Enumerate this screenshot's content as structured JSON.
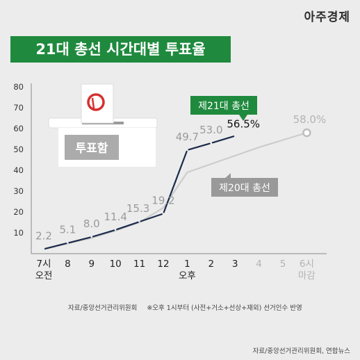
{
  "brand": "아주경제",
  "title": "21대 총선 시간대별 투표율",
  "ballot_box_label": "투표함",
  "footnote_source": "자료/중앙선거관리위원회",
  "footnote_note": "※오후 1시부터 (사전+거소+선상+재외) 선거인수 반영",
  "bottom_source": "자료/중앙선거관리위원회, 연합뉴스",
  "colors": {
    "title_bg": "#1f8a3e",
    "series_21": "#1b2a4a",
    "series_20": "#cccccc",
    "label_21_bg": "#1f8a3e",
    "label_20_bg": "#999999"
  },
  "chart_data": {
    "type": "line",
    "title": "21대 총선 시간대별 투표율",
    "xlabel": "",
    "ylabel": "",
    "ylim": [
      0,
      80
    ],
    "yticks": [
      "80",
      "70",
      "60",
      "50",
      "40",
      "30",
      "20",
      "10"
    ],
    "grid": false,
    "categories": [
      "7시|오전",
      "8",
      "9",
      "10",
      "11",
      "12",
      "1|오후",
      "2",
      "3",
      "4",
      "5",
      "6시|마감"
    ],
    "series": [
      {
        "name": "제21대 총선",
        "values": [
          2.2,
          5.1,
          8.0,
          11.4,
          15.3,
          19.2,
          49.7,
          53.0,
          56.5,
          null,
          null,
          null
        ],
        "labels": [
          "2.2",
          "5.1",
          "8.0",
          "11.4",
          "15.3",
          "19.2",
          "49.7",
          "53.0",
          "56.5%",
          "",
          "",
          ""
        ]
      },
      {
        "name": "제20대 총선",
        "values": [
          2.1,
          4.8,
          7.5,
          11.0,
          15.0,
          22.0,
          39.0,
          43.0,
          47.0,
          51.0,
          54.5,
          58.0
        ],
        "labels": [
          "",
          "",
          "",
          "",
          "",
          "",
          "",
          "",
          "",
          "",
          "",
          "58.0%"
        ]
      }
    ]
  }
}
